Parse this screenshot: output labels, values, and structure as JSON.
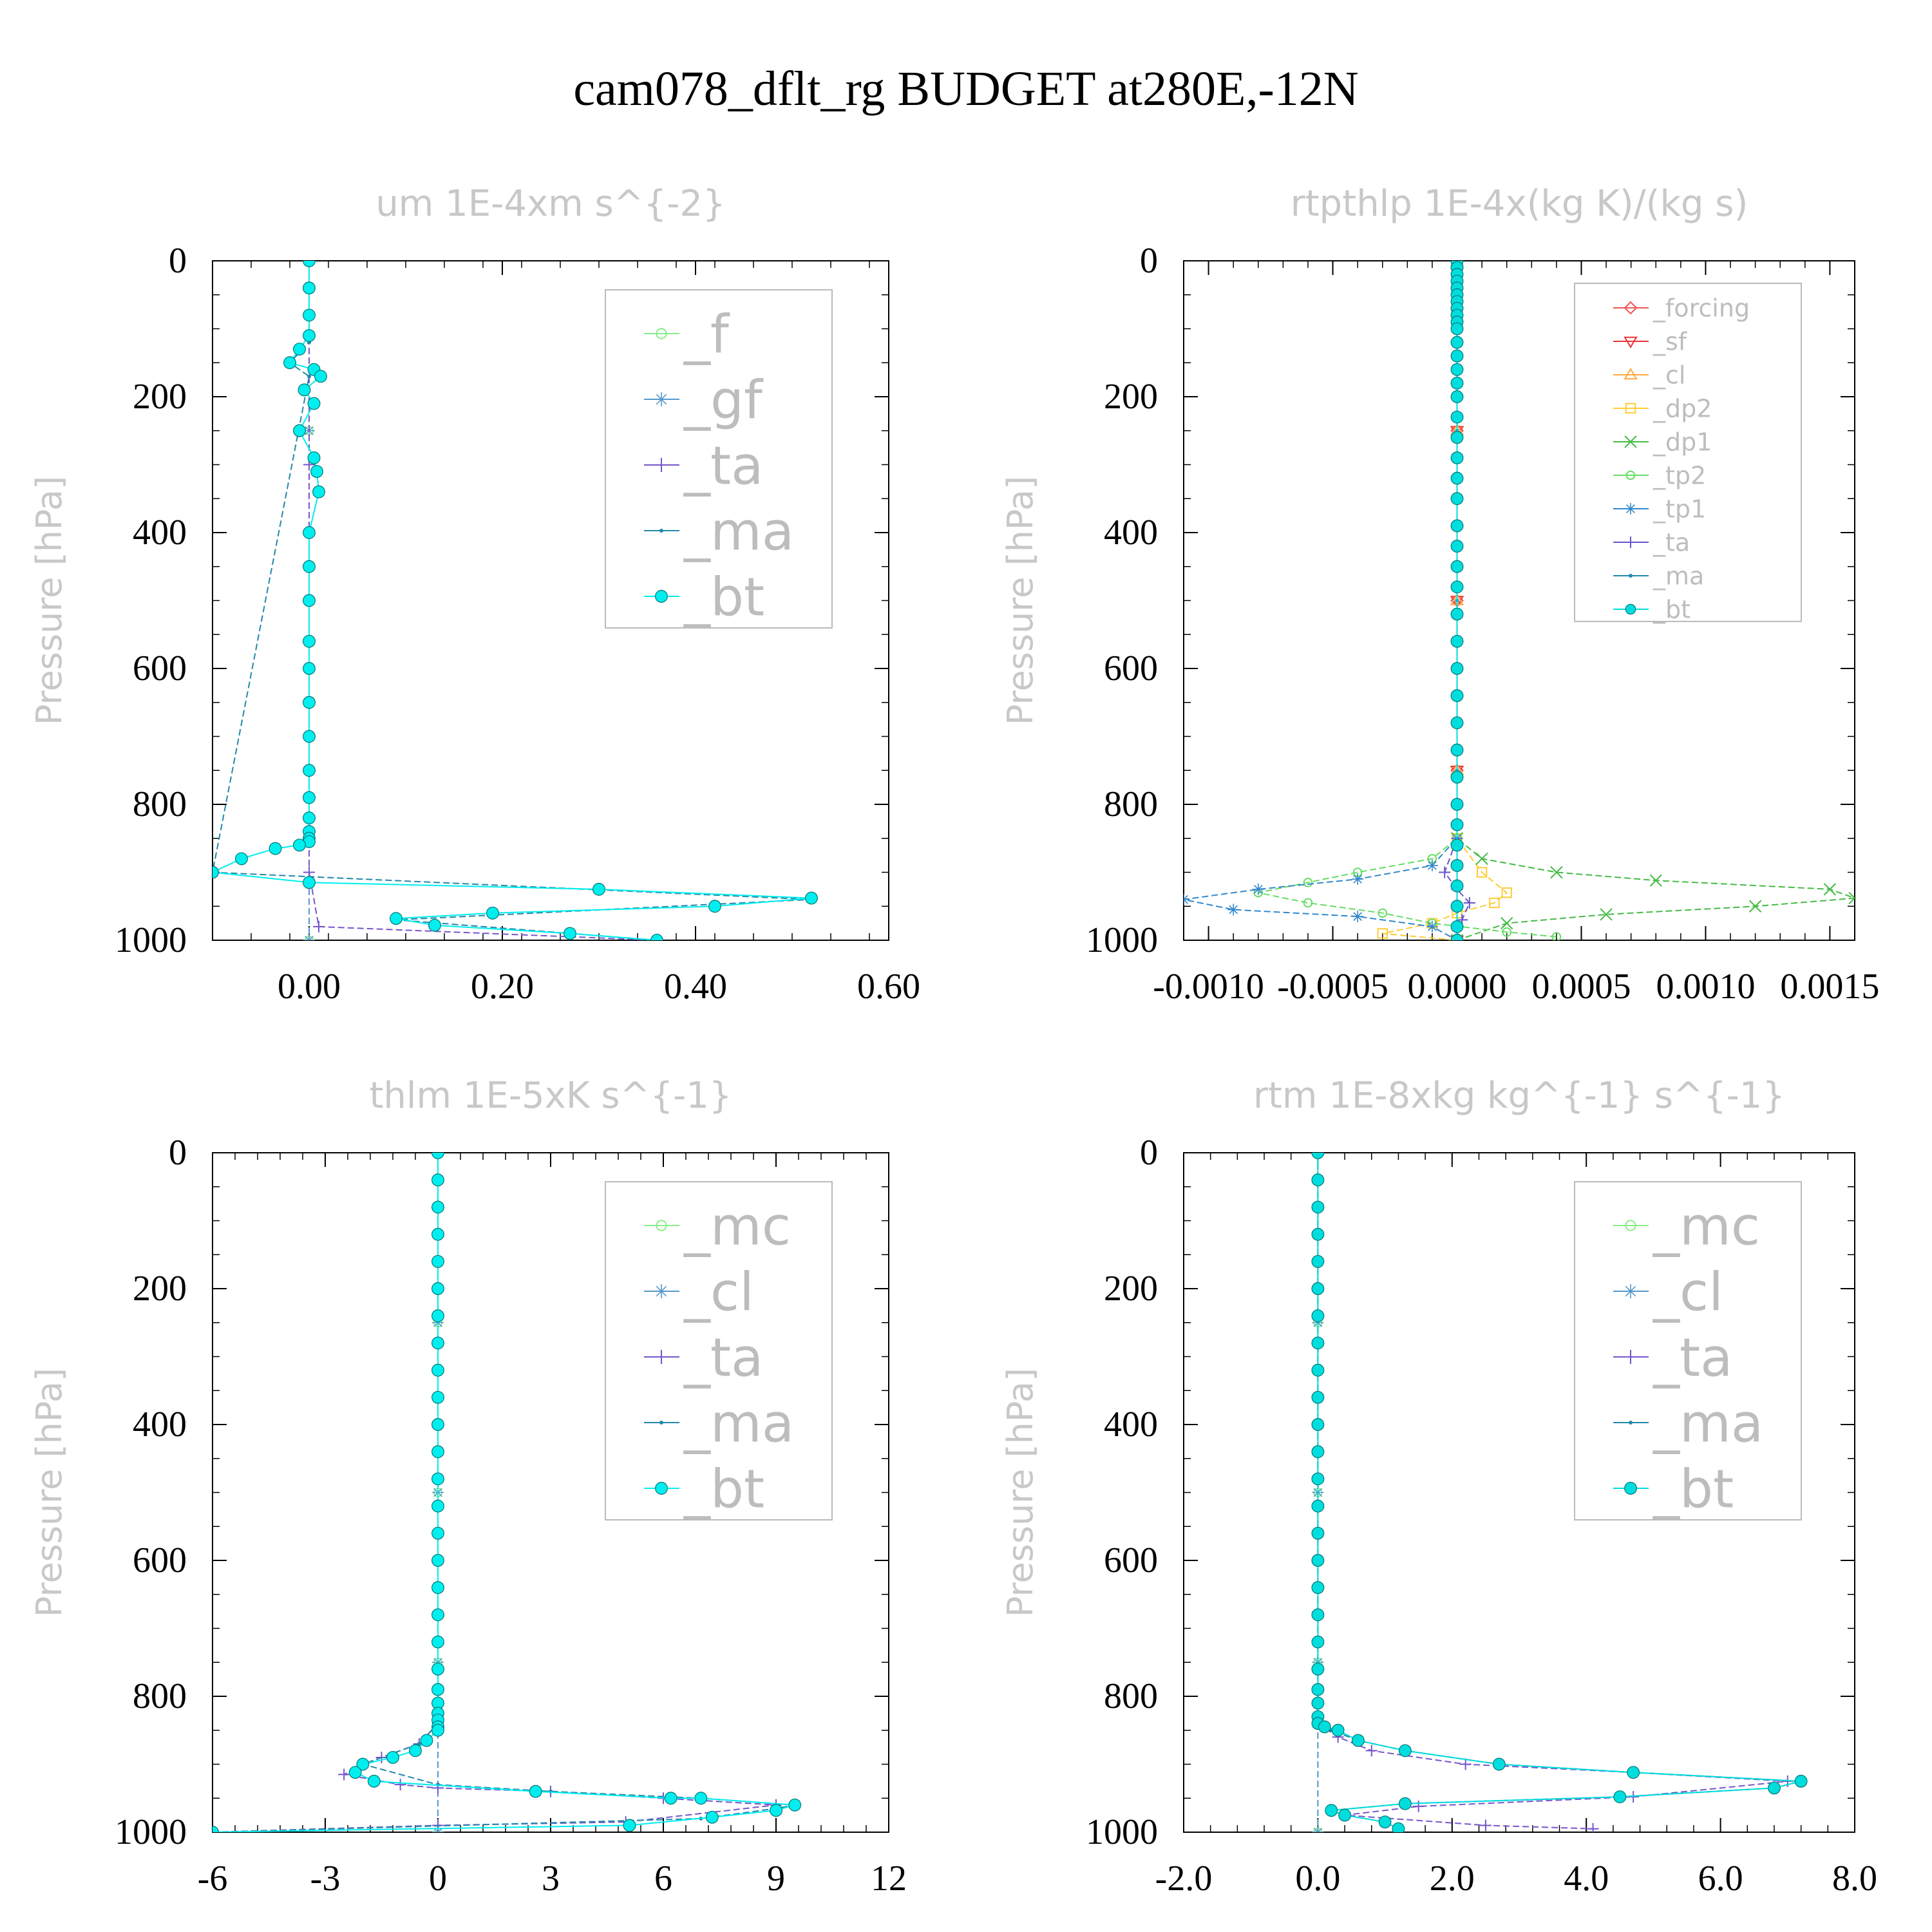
{
  "title": "cam078_dflt_rg  BUDGET at280E,-12N",
  "chart_data": [
    {
      "type": "line",
      "title": "um  1E-4xm s^{-2}",
      "ylabel": "Pressure [hPa]",
      "xlabel": "",
      "xlim": [
        -0.1,
        0.6
      ],
      "ylim": [
        1000,
        0
      ],
      "xticks": [
        "0.00",
        "0.20",
        "0.40",
        "0.60"
      ],
      "xtick_values": [
        0,
        0.2,
        0.4,
        0.6
      ],
      "yticks": [
        "0",
        "200",
        "400",
        "600",
        "800",
        "1000"
      ],
      "legend_position": "top-right",
      "series": [
        {
          "name": "_f",
          "color": "#88ee88",
          "marker": "circle-open",
          "x": [
            0,
            0,
            0,
            0,
            0
          ],
          "y": [
            0,
            250,
            500,
            750,
            1000
          ]
        },
        {
          "name": "_gf",
          "color": "#5599cc",
          "marker": "star",
          "x": [
            0,
            0,
            0,
            0,
            0
          ],
          "y": [
            0,
            250,
            500,
            750,
            1000
          ]
        },
        {
          "name": "_ta",
          "color": "#7755cc",
          "marker": "plus",
          "x": [
            0,
            0,
            0,
            0,
            0.01,
            0.36
          ],
          "y": [
            0,
            300,
            600,
            900,
            980,
            1000
          ]
        },
        {
          "name": "_ma",
          "color": "#2288aa",
          "marker": "dot",
          "x": [
            0,
            0,
            -0.02,
            0,
            -0.1,
            0.52,
            0.09,
            0.36
          ],
          "y": [
            0,
            120,
            150,
            170,
            900,
            940,
            970,
            1000
          ]
        },
        {
          "name": "_bt",
          "color": "#00eeee",
          "marker": "circle-filled",
          "x": [
            0,
            0,
            0,
            0,
            -0.01,
            -0.02,
            0.005,
            0.012,
            -0.005,
            0.005,
            -0.01,
            0.005,
            0.008,
            0.01,
            0,
            0,
            0,
            0,
            0,
            0,
            0,
            0,
            0,
            0,
            0,
            0,
            0,
            -0.01,
            -0.035,
            -0.07,
            -0.1,
            0,
            0.3,
            0.52,
            0.42,
            0.19,
            0.09,
            0.13,
            0.27,
            0.36
          ],
          "y": [
            0,
            40,
            80,
            110,
            130,
            150,
            160,
            170,
            190,
            210,
            250,
            290,
            310,
            340,
            400,
            450,
            500,
            560,
            600,
            650,
            700,
            750,
            790,
            820,
            840,
            850,
            855,
            860,
            865,
            880,
            900,
            915,
            925,
            938,
            950,
            960,
            968,
            978,
            990,
            1000
          ]
        }
      ]
    },
    {
      "type": "line",
      "title": "rtpthlp  1E-4x(kg K)/(kg s)",
      "ylabel": "Pressure [hPa]",
      "xlabel": "",
      "xlim": [
        -0.0011,
        0.0016
      ],
      "ylim": [
        1000,
        0
      ],
      "xticks": [
        "-0.0010",
        "-0.0005",
        "0.0000",
        "0.0005",
        "0.0010",
        "0.0015"
      ],
      "xtick_values": [
        -0.001,
        -0.0005,
        0,
        0.0005,
        0.001,
        0.0015
      ],
      "yticks": [
        "0",
        "200",
        "400",
        "600",
        "800",
        "1000"
      ],
      "legend_position": "top-right",
      "series": [
        {
          "name": "_forcing",
          "color": "#ee5555",
          "marker": "diamond",
          "x": [
            0,
            0,
            0,
            0,
            0
          ],
          "y": [
            0,
            250,
            500,
            750,
            1000
          ]
        },
        {
          "name": "_sf",
          "color": "#ee3333",
          "marker": "triangle-down",
          "x": [
            0,
            0,
            0,
            0,
            0
          ],
          "y": [
            0,
            250,
            500,
            750,
            1000
          ]
        },
        {
          "name": "_cl",
          "color": "#ffaa44",
          "marker": "triangle-up",
          "x": [
            0,
            0,
            0,
            0,
            0
          ],
          "y": [
            0,
            250,
            500,
            750,
            1000
          ]
        },
        {
          "name": "_dp2",
          "color": "#ffcc33",
          "marker": "square",
          "x": [
            0,
            0,
            0.0001,
            0.0002,
            0.00015,
            0,
            -0.0001,
            -0.0003,
            0
          ],
          "y": [
            0,
            850,
            900,
            930,
            945,
            960,
            975,
            990,
            1000
          ]
        },
        {
          "name": "_dp1",
          "color": "#44bb44",
          "marker": "cross",
          "x": [
            0,
            0,
            0.0001,
            0.0004,
            0.0008,
            0.0015,
            0.0016,
            0.0012,
            0.0006,
            0.0002,
            0
          ],
          "y": [
            0,
            850,
            880,
            900,
            912,
            925,
            938,
            950,
            962,
            975,
            1000
          ]
        },
        {
          "name": "_tp2",
          "color": "#66dd66",
          "marker": "circle-open",
          "x": [
            0,
            0,
            -0.0001,
            -0.0004,
            -0.0006,
            -0.0008,
            -0.0006,
            -0.0003,
            -0.0001,
            0.0002,
            0.0004
          ],
          "y": [
            0,
            850,
            880,
            900,
            915,
            930,
            945,
            960,
            975,
            988,
            995
          ]
        },
        {
          "name": "_tp1",
          "color": "#3388cc",
          "marker": "star",
          "x": [
            0,
            0,
            -0.0001,
            -0.0004,
            -0.0008,
            -0.0011,
            -0.0009,
            -0.0004,
            -0.0001,
            0
          ],
          "y": [
            0,
            850,
            890,
            910,
            925,
            940,
            955,
            965,
            980,
            1000
          ]
        },
        {
          "name": "_ta",
          "color": "#6655cc",
          "marker": "plus",
          "x": [
            0,
            0,
            -5e-05,
            0,
            5e-05,
            2e-05,
            0
          ],
          "y": [
            0,
            850,
            900,
            925,
            945,
            970,
            1000
          ]
        },
        {
          "name": "_ma",
          "color": "#2288aa",
          "marker": "dot",
          "x": [
            0,
            0,
            0,
            0,
            0
          ],
          "y": [
            0,
            250,
            500,
            750,
            1000
          ]
        },
        {
          "name": "_bt",
          "color": "#00dddd",
          "marker": "circle-filled",
          "x": [
            0,
            0,
            0,
            0,
            0,
            0,
            0,
            0,
            0,
            0,
            0,
            0,
            0,
            0,
            0,
            0,
            0,
            0,
            0,
            0,
            0,
            0,
            0,
            0,
            0,
            0,
            0,
            0,
            0,
            0,
            0,
            0,
            0,
            0,
            0,
            0,
            0,
            0,
            0,
            0
          ],
          "y": [
            0,
            10,
            20,
            30,
            40,
            50,
            60,
            70,
            80,
            90,
            100,
            120,
            140,
            160,
            180,
            200,
            230,
            260,
            290,
            320,
            350,
            390,
            420,
            450,
            480,
            520,
            560,
            600,
            640,
            680,
            720,
            760,
            800,
            830,
            860,
            890,
            920,
            950,
            980,
            1000
          ]
        }
      ]
    },
    {
      "type": "line",
      "title": "thlm  1E-5xK s^{-1}",
      "ylabel": "Pressure [hPa]",
      "xlabel": "",
      "xlim": [
        -6,
        12
      ],
      "ylim": [
        1000,
        0
      ],
      "xticks": [
        "-6",
        "-3",
        "0",
        "3",
        "6",
        "9",
        "12"
      ],
      "xtick_values": [
        -6,
        -3,
        0,
        3,
        6,
        9,
        12
      ],
      "yticks": [
        "0",
        "200",
        "400",
        "600",
        "800",
        "1000"
      ],
      "legend_position": "top-right",
      "series": [
        {
          "name": "_mc",
          "color": "#88ee88",
          "marker": "circle-open",
          "x": [
            0,
            0,
            0,
            0,
            0
          ],
          "y": [
            0,
            250,
            500,
            750,
            1000
          ]
        },
        {
          "name": "_cl",
          "color": "#5599cc",
          "marker": "star",
          "x": [
            0,
            0,
            0,
            0,
            0
          ],
          "y": [
            0,
            250,
            500,
            750,
            1000
          ]
        },
        {
          "name": "_ta",
          "color": "#7755cc",
          "marker": "plus",
          "x": [
            0,
            0,
            -0.5,
            -1.5,
            -2.5,
            -1,
            0,
            3,
            6,
            9,
            5,
            0,
            -6
          ],
          "y": [
            0,
            840,
            870,
            890,
            915,
            930,
            935,
            940,
            950,
            960,
            985,
            990,
            1000
          ]
        },
        {
          "name": "_ma",
          "color": "#2288aa",
          "marker": "dot",
          "x": [
            0,
            0,
            -0.5,
            -2,
            0,
            3,
            7,
            9.5,
            9,
            7,
            -6
          ],
          "y": [
            0,
            840,
            870,
            900,
            930,
            940,
            950,
            960,
            965,
            980,
            1000
          ]
        },
        {
          "name": "_bt",
          "color": "#00eeee",
          "marker": "circle-filled",
          "x": [
            0,
            0,
            0,
            0,
            0,
            0,
            0,
            0,
            0,
            0,
            0,
            0,
            0,
            0,
            0,
            0,
            0,
            0,
            0,
            0,
            0,
            0,
            0,
            0,
            0,
            0,
            -0.3,
            -0.6,
            -1.2,
            -2,
            -2.2,
            -1.7,
            2.6,
            6.2,
            7,
            9.5,
            9,
            7.3,
            5.1,
            -6
          ],
          "y": [
            0,
            40,
            80,
            120,
            160,
            200,
            240,
            280,
            320,
            360,
            400,
            440,
            480,
            520,
            560,
            600,
            640,
            680,
            720,
            760,
            790,
            810,
            825,
            835,
            845,
            850,
            865,
            880,
            890,
            900,
            912,
            925,
            940,
            950,
            950,
            960,
            968,
            978,
            990,
            1000
          ]
        }
      ]
    },
    {
      "type": "line",
      "title": "rtm  1E-8xkg kg^{-1} s^{-1}",
      "ylabel": "Pressure [hPa]",
      "xlabel": "",
      "xlim": [
        -2,
        8
      ],
      "ylim": [
        1000,
        0
      ],
      "xticks": [
        "-2.0",
        "0.0",
        "2.0",
        "4.0",
        "6.0",
        "8.0"
      ],
      "xtick_values": [
        -2,
        0,
        2,
        4,
        6,
        8
      ],
      "yticks": [
        "0",
        "200",
        "400",
        "600",
        "800",
        "1000"
      ],
      "legend_position": "top-right",
      "series": [
        {
          "name": "_mc",
          "color": "#88ee88",
          "marker": "circle-open",
          "x": [
            0,
            0,
            0,
            0,
            0
          ],
          "y": [
            0,
            250,
            500,
            750,
            1000
          ]
        },
        {
          "name": "_cl",
          "color": "#5599cc",
          "marker": "star",
          "x": [
            0,
            0,
            0,
            0,
            0
          ],
          "y": [
            0,
            250,
            500,
            750,
            1000
          ]
        },
        {
          "name": "_ta",
          "color": "#7755cc",
          "marker": "plus",
          "x": [
            0,
            0,
            0.3,
            0.8,
            2.2,
            4.7,
            7.0,
            4.7,
            1.5,
            0.4,
            2.5,
            4.1
          ],
          "y": [
            0,
            840,
            860,
            880,
            900,
            912,
            925,
            948,
            962,
            975,
            990,
            995
          ]
        },
        {
          "name": "_ma",
          "color": "#2288aa",
          "marker": "dot",
          "x": [
            0,
            0,
            0.2,
            0.6,
            1.3,
            2.7,
            4.7,
            7.2,
            6.8,
            4.5,
            1.3,
            0.2
          ],
          "y": [
            0,
            840,
            850,
            865,
            880,
            900,
            912,
            925,
            935,
            948,
            958,
            968
          ]
        },
        {
          "name": "_bt",
          "color": "#00dddd",
          "marker": "circle-filled",
          "x": [
            0,
            0,
            0,
            0,
            0,
            0,
            0,
            0,
            0,
            0,
            0,
            0,
            0,
            0,
            0,
            0,
            0,
            0,
            0,
            0,
            0,
            0,
            0,
            0,
            0.1,
            0.3,
            0.6,
            1.3,
            2.7,
            4.7,
            7.2,
            6.8,
            4.5,
            1.3,
            0.2,
            0.4,
            1.0,
            1.2
          ],
          "y": [
            0,
            40,
            80,
            120,
            160,
            200,
            240,
            280,
            320,
            360,
            400,
            440,
            480,
            520,
            560,
            600,
            640,
            680,
            720,
            760,
            790,
            810,
            830,
            840,
            845,
            850,
            865,
            880,
            900,
            912,
            925,
            935,
            948,
            958,
            968,
            975,
            985,
            995
          ]
        }
      ]
    }
  ]
}
